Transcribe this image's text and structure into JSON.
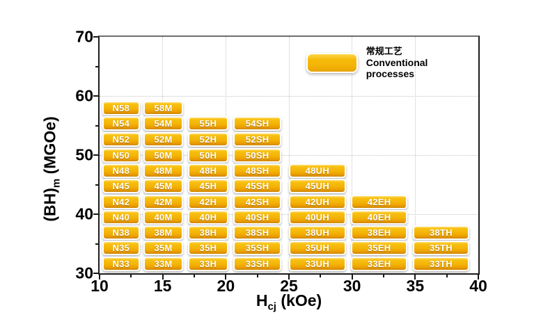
{
  "axes": {
    "x": {
      "title_prefix": "H",
      "title_sub": "cj",
      "title_suffix": " (kOe)"
    },
    "y": {
      "title_prefix": "(BH)",
      "title_sub": "m",
      "title_suffix": " (MGOe)"
    }
  },
  "legend": {
    "label_zh": "常规工艺",
    "label_en": "Conventional processes",
    "swatch_color": "#F3B306"
  },
  "chart_data": {
    "type": "table",
    "title": "",
    "xlabel": "Hcj (kOe)",
    "ylabel": "(BH)m (MGOe)",
    "xlim": [
      10,
      40
    ],
    "ylim": [
      30,
      70
    ],
    "x_ticks": [
      10,
      15,
      20,
      25,
      30,
      35,
      40
    ],
    "x_minor_ticks": [
      12.5,
      17.5,
      22.5,
      27.5,
      32.5,
      37.5
    ],
    "y_ticks": [
      70,
      60,
      50,
      40,
      30
    ],
    "y_minor_ticks": [
      65,
      55,
      45,
      35
    ],
    "gridlines": {
      "x": [
        15,
        20,
        25,
        30,
        35
      ],
      "y": [
        40,
        50,
        60
      ],
      "style": "dotted"
    },
    "legend_position": "top-right-inside",
    "columns": [
      {
        "name": "N",
        "hcj_range_kOe": [
          10.2,
          13.2
        ]
      },
      {
        "name": "M",
        "hcj_range_kOe": [
          13.5,
          16.6
        ]
      },
      {
        "name": "H",
        "hcj_range_kOe": [
          17.0,
          20.2
        ]
      },
      {
        "name": "SH",
        "hcj_range_kOe": [
          20.6,
          24.4
        ]
      },
      {
        "name": "UH",
        "hcj_range_kOe": [
          25.0,
          29.5
        ]
      },
      {
        "name": "EH",
        "hcj_range_kOe": [
          29.9,
          34.4
        ]
      },
      {
        "name": "TH",
        "hcj_range_kOe": [
          34.8,
          39.3
        ]
      }
    ],
    "rows": [
      {
        "bh_center_mgoe": 57.9,
        "grades": [
          "N58",
          "58M",
          "",
          "",
          "",
          "",
          ""
        ]
      },
      {
        "bh_center_mgoe": 55.3,
        "grades": [
          "N54",
          "54M",
          "55H",
          "54SH",
          "",
          "",
          ""
        ]
      },
      {
        "bh_center_mgoe": 52.6,
        "grades": [
          "N52",
          "52M",
          "52H",
          "52SH",
          "",
          "",
          ""
        ]
      },
      {
        "bh_center_mgoe": 50.0,
        "grades": [
          "N50",
          "50M",
          "50H",
          "50SH",
          "",
          "",
          ""
        ]
      },
      {
        "bh_center_mgoe": 47.4,
        "grades": [
          "N48",
          "48M",
          "48H",
          "48SH",
          "48UH",
          "",
          ""
        ]
      },
      {
        "bh_center_mgoe": 44.8,
        "grades": [
          "N45",
          "45M",
          "45H",
          "45SH",
          "45UH",
          "",
          ""
        ]
      },
      {
        "bh_center_mgoe": 42.1,
        "grades": [
          "N42",
          "42M",
          "42H",
          "42SH",
          "42UH",
          "42EH",
          ""
        ]
      },
      {
        "bh_center_mgoe": 39.5,
        "grades": [
          "N40",
          "40M",
          "40H",
          "40SH",
          "40UH",
          "40EH",
          ""
        ]
      },
      {
        "bh_center_mgoe": 36.9,
        "grades": [
          "N38",
          "38M",
          "38H",
          "38SH",
          "38UH",
          "38EH",
          "38TH"
        ]
      },
      {
        "bh_center_mgoe": 34.3,
        "grades": [
          "N35",
          "35M",
          "35H",
          "35SH",
          "35UH",
          "35EH",
          "35TH"
        ]
      },
      {
        "bh_center_mgoe": 31.6,
        "grades": [
          "N33",
          "33M",
          "33H",
          "33SH",
          "33UH",
          "33EH",
          "33TH"
        ]
      }
    ],
    "colors": {
      "badge_fill": "#F3B306",
      "badge_fill_light": "#FFE07A",
      "badge_fill_dark": "#CF8600",
      "badge_border": "#FFFFFF",
      "badge_text": "#FFFFFF"
    }
  }
}
